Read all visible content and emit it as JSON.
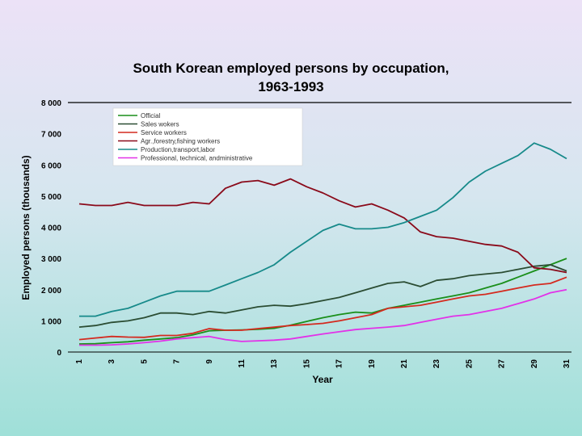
{
  "chart_data": {
    "type": "line",
    "title_line1": "South Korean employed persons by occupation,",
    "title_line2": "1963-1993",
    "xlabel": "Year",
    "ylabel": "Employed persons (thousands)",
    "ylim": [
      0,
      8000
    ],
    "yticks": [
      0,
      1000,
      2000,
      3000,
      4000,
      5000,
      6000,
      7000,
      8000
    ],
    "ytick_labels": [
      "0",
      "1 000",
      "2 000",
      "3 000",
      "4 000",
      "5 000",
      "6 000",
      "7 000",
      "8 000"
    ],
    "xlim": [
      1,
      31
    ],
    "xticks": [
      1,
      3,
      5,
      7,
      9,
      11,
      13,
      15,
      17,
      19,
      21,
      23,
      25,
      27,
      29,
      31
    ],
    "grid": false,
    "legend_position": "top-left",
    "series": [
      {
        "name": "Official",
        "color": "#1a8f1a",
        "values": [
          260,
          270,
          300,
          330,
          380,
          420,
          460,
          550,
          680,
          700,
          710,
          730,
          760,
          860,
          980,
          1100,
          1200,
          1280,
          1250,
          1400,
          1500,
          1600,
          1700,
          1800,
          1900,
          2050,
          2200,
          2400,
          2600,
          2800,
          3000
        ]
      },
      {
        "name": "Sales wokers",
        "color": "#2b4d33",
        "values": [
          800,
          850,
          950,
          1000,
          1100,
          1250,
          1250,
          1200,
          1300,
          1250,
          1350,
          1450,
          1500,
          1470,
          1550,
          1650,
          1750,
          1900,
          2050,
          2200,
          2250,
          2100,
          2300,
          2350,
          2450,
          2500,
          2550,
          2650,
          2750,
          2800,
          2600
        ]
      },
      {
        "name": "Service workers",
        "color": "#d42a1f",
        "values": [
          400,
          450,
          500,
          480,
          470,
          530,
          530,
          600,
          750,
          700,
          700,
          750,
          800,
          850,
          880,
          920,
          1000,
          1100,
          1200,
          1400,
          1450,
          1500,
          1600,
          1700,
          1800,
          1850,
          1950,
          2050,
          2150,
          2200,
          2400
        ]
      },
      {
        "name": "Agr.,forestry,fishing workers",
        "color": "#8a0a1a",
        "values": [
          4750,
          4700,
          4700,
          4800,
          4700,
          4700,
          4700,
          4800,
          4750,
          5250,
          5450,
          5500,
          5350,
          5550,
          5300,
          5100,
          4850,
          4650,
          4750,
          4550,
          4300,
          3850,
          3700,
          3650,
          3550,
          3450,
          3400,
          3200,
          2700,
          2650,
          2550
        ]
      },
      {
        "name": "Production,transport,labor",
        "color": "#178a8a",
        "values": [
          1150,
          1150,
          1300,
          1400,
          1600,
          1800,
          1950,
          1950,
          1950,
          2150,
          2350,
          2550,
          2800,
          3200,
          3550,
          3900,
          4100,
          3950,
          3950,
          4000,
          4150,
          4350,
          4550,
          4950,
          5450,
          5800,
          6050,
          6300,
          6700,
          6500,
          6200
        ]
      },
      {
        "name": "Professional, technical, andministrative",
        "color": "#e232e8",
        "values": [
          220,
          220,
          230,
          260,
          300,
          350,
          420,
          460,
          500,
          400,
          340,
          360,
          380,
          420,
          500,
          580,
          650,
          720,
          760,
          800,
          850,
          950,
          1050,
          1150,
          1200,
          1300,
          1400,
          1550,
          1700,
          1900,
          2000
        ]
      }
    ]
  }
}
